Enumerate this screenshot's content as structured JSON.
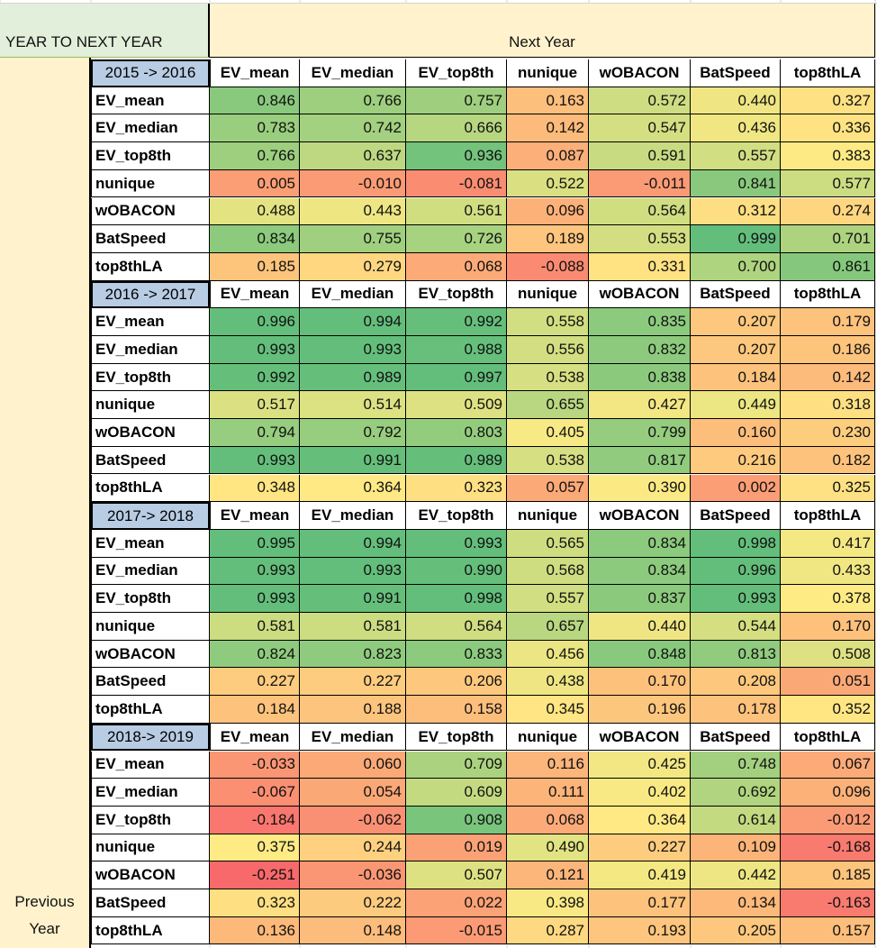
{
  "sheet": {
    "corner_label": "YEAR TO NEXT YEAR",
    "col_header_label": "Next Year",
    "row_header_line1": "Previous",
    "row_header_line2": "Year"
  },
  "chart_data": {
    "type": "heatmap",
    "title": "",
    "xlabel": "Next Year",
    "ylabel": "Previous Year",
    "columns": [
      "EV_mean",
      "EV_median",
      "EV_top8th",
      "nunique",
      "wOBACON",
      "BatSpeed",
      "top8thLA"
    ],
    "rows": [
      "EV_mean",
      "EV_median",
      "EV_top8th",
      "nunique",
      "wOBACON",
      "BatSpeed",
      "top8thLA"
    ],
    "color_scale": {
      "low": "#f8696b",
      "mid": "#ffeb84",
      "high": "#63be7b"
    },
    "blocks": [
      {
        "period": "2015 -> 2016",
        "values": [
          [
            "0.846",
            "0.766",
            "0.757",
            "0.163",
            "0.572",
            "0.440",
            "0.327"
          ],
          [
            "0.783",
            "0.742",
            "0.666",
            "0.142",
            "0.547",
            "0.436",
            "0.336"
          ],
          [
            "0.766",
            "0.637",
            "0.936",
            "0.087",
            "0.591",
            "0.557",
            "0.383"
          ],
          [
            "0.005",
            "-0.010",
            "-0.081",
            "0.522",
            "-0.011",
            "0.841",
            "0.577"
          ],
          [
            "0.488",
            "0.443",
            "0.561",
            "0.096",
            "0.564",
            "0.312",
            "0.274"
          ],
          [
            "0.834",
            "0.755",
            "0.726",
            "0.189",
            "0.553",
            "0.999",
            "0.701"
          ],
          [
            "0.185",
            "0.279",
            "0.068",
            "-0.088",
            "0.331",
            "0.700",
            "0.861"
          ]
        ]
      },
      {
        "period": "2016 -> 2017",
        "values": [
          [
            "0.996",
            "0.994",
            "0.992",
            "0.558",
            "0.835",
            "0.207",
            "0.179"
          ],
          [
            "0.993",
            "0.993",
            "0.988",
            "0.556",
            "0.832",
            "0.207",
            "0.186"
          ],
          [
            "0.992",
            "0.989",
            "0.997",
            "0.538",
            "0.838",
            "0.184",
            "0.142"
          ],
          [
            "0.517",
            "0.514",
            "0.509",
            "0.655",
            "0.427",
            "0.449",
            "0.318"
          ],
          [
            "0.794",
            "0.792",
            "0.803",
            "0.405",
            "0.799",
            "0.160",
            "0.230"
          ],
          [
            "0.993",
            "0.991",
            "0.989",
            "0.538",
            "0.817",
            "0.216",
            "0.182"
          ],
          [
            "0.348",
            "0.364",
            "0.323",
            "0.057",
            "0.390",
            "0.002",
            "0.325"
          ]
        ]
      },
      {
        "period": "2017-> 2018",
        "values": [
          [
            "0.995",
            "0.994",
            "0.993",
            "0.565",
            "0.834",
            "0.998",
            "0.417"
          ],
          [
            "0.993",
            "0.993",
            "0.990",
            "0.568",
            "0.834",
            "0.996",
            "0.433"
          ],
          [
            "0.993",
            "0.991",
            "0.998",
            "0.557",
            "0.837",
            "0.993",
            "0.378"
          ],
          [
            "0.581",
            "0.581",
            "0.564",
            "0.657",
            "0.440",
            "0.544",
            "0.170"
          ],
          [
            "0.824",
            "0.823",
            "0.833",
            "0.456",
            "0.848",
            "0.813",
            "0.508"
          ],
          [
            "0.227",
            "0.227",
            "0.206",
            "0.438",
            "0.170",
            "0.208",
            "0.051"
          ],
          [
            "0.184",
            "0.188",
            "0.158",
            "0.345",
            "0.196",
            "0.178",
            "0.352"
          ]
        ]
      },
      {
        "period": "2018-> 2019",
        "values": [
          [
            "-0.033",
            "0.060",
            "0.709",
            "0.116",
            "0.425",
            "0.748",
            "0.067"
          ],
          [
            "-0.067",
            "0.054",
            "0.609",
            "0.111",
            "0.402",
            "0.692",
            "0.096"
          ],
          [
            "-0.184",
            "-0.062",
            "0.908",
            "0.068",
            "0.364",
            "0.614",
            "-0.012"
          ],
          [
            "0.375",
            "0.244",
            "0.019",
            "0.490",
            "0.227",
            "0.109",
            "-0.168"
          ],
          [
            "-0.251",
            "-0.036",
            "0.507",
            "0.121",
            "0.419",
            "0.442",
            "0.185"
          ],
          [
            "0.323",
            "0.222",
            "0.022",
            "0.398",
            "0.177",
            "0.134",
            "-0.163"
          ],
          [
            "0.136",
            "0.148",
            "-0.015",
            "0.287",
            "0.193",
            "0.205",
            "0.157"
          ]
        ]
      }
    ]
  }
}
